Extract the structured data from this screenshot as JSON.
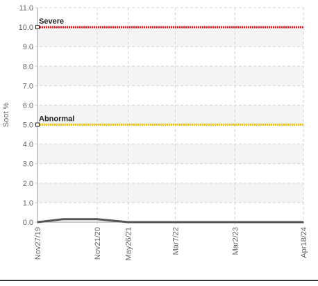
{
  "chart_data": {
    "type": "line",
    "ylabel": "Soot %",
    "xlabel": "",
    "ylim": [
      0,
      11
    ],
    "yticks": [
      "0.0",
      "1.0",
      "2.0",
      "3.0",
      "4.0",
      "5.0",
      "6.0",
      "7.0",
      "8.0",
      "9.0",
      "10.0",
      "11.0"
    ],
    "ytick_values": [
      0,
      1,
      2,
      3,
      4,
      5,
      6,
      7,
      8,
      9,
      10,
      11
    ],
    "xlim": [
      "2019-11-27",
      "2024-04-18"
    ],
    "xticks": [
      {
        "label": "Nov27/19",
        "date": "2019-11-27"
      },
      {
        "label": "Nov21/20",
        "date": "2020-11-21"
      },
      {
        "label": "May26/21",
        "date": "2021-05-26"
      },
      {
        "label": "Mar7/22",
        "date": "2022-03-07"
      },
      {
        "label": "Mar2/23",
        "date": "2023-03-02"
      },
      {
        "label": "Apr18/24",
        "date": "2024-04-18"
      }
    ],
    "grid": true,
    "series": [
      {
        "kind": "data",
        "color": "#555555",
        "points": [
          {
            "x": "2019-11-27",
            "y": 0
          },
          {
            "x": "2020-05-01",
            "y": 0.15
          },
          {
            "x": "2020-11-21",
            "y": 0.15
          },
          {
            "x": "2021-05-26",
            "y": 0
          },
          {
            "x": "2022-03-07",
            "y": 0
          },
          {
            "x": "2023-03-02",
            "y": 0
          },
          {
            "x": "2024-04-18",
            "y": 0
          }
        ]
      },
      {
        "kind": "threshold",
        "name": "Severe",
        "color": "#e8141b",
        "y": 10,
        "x_start": "2019-11-27",
        "x_end": "2024-04-18"
      },
      {
        "kind": "threshold",
        "name": "Abnormal",
        "color": "#f5c000",
        "y": 5,
        "x_start": "2019-11-27",
        "x_end": "2024-04-18"
      }
    ]
  }
}
